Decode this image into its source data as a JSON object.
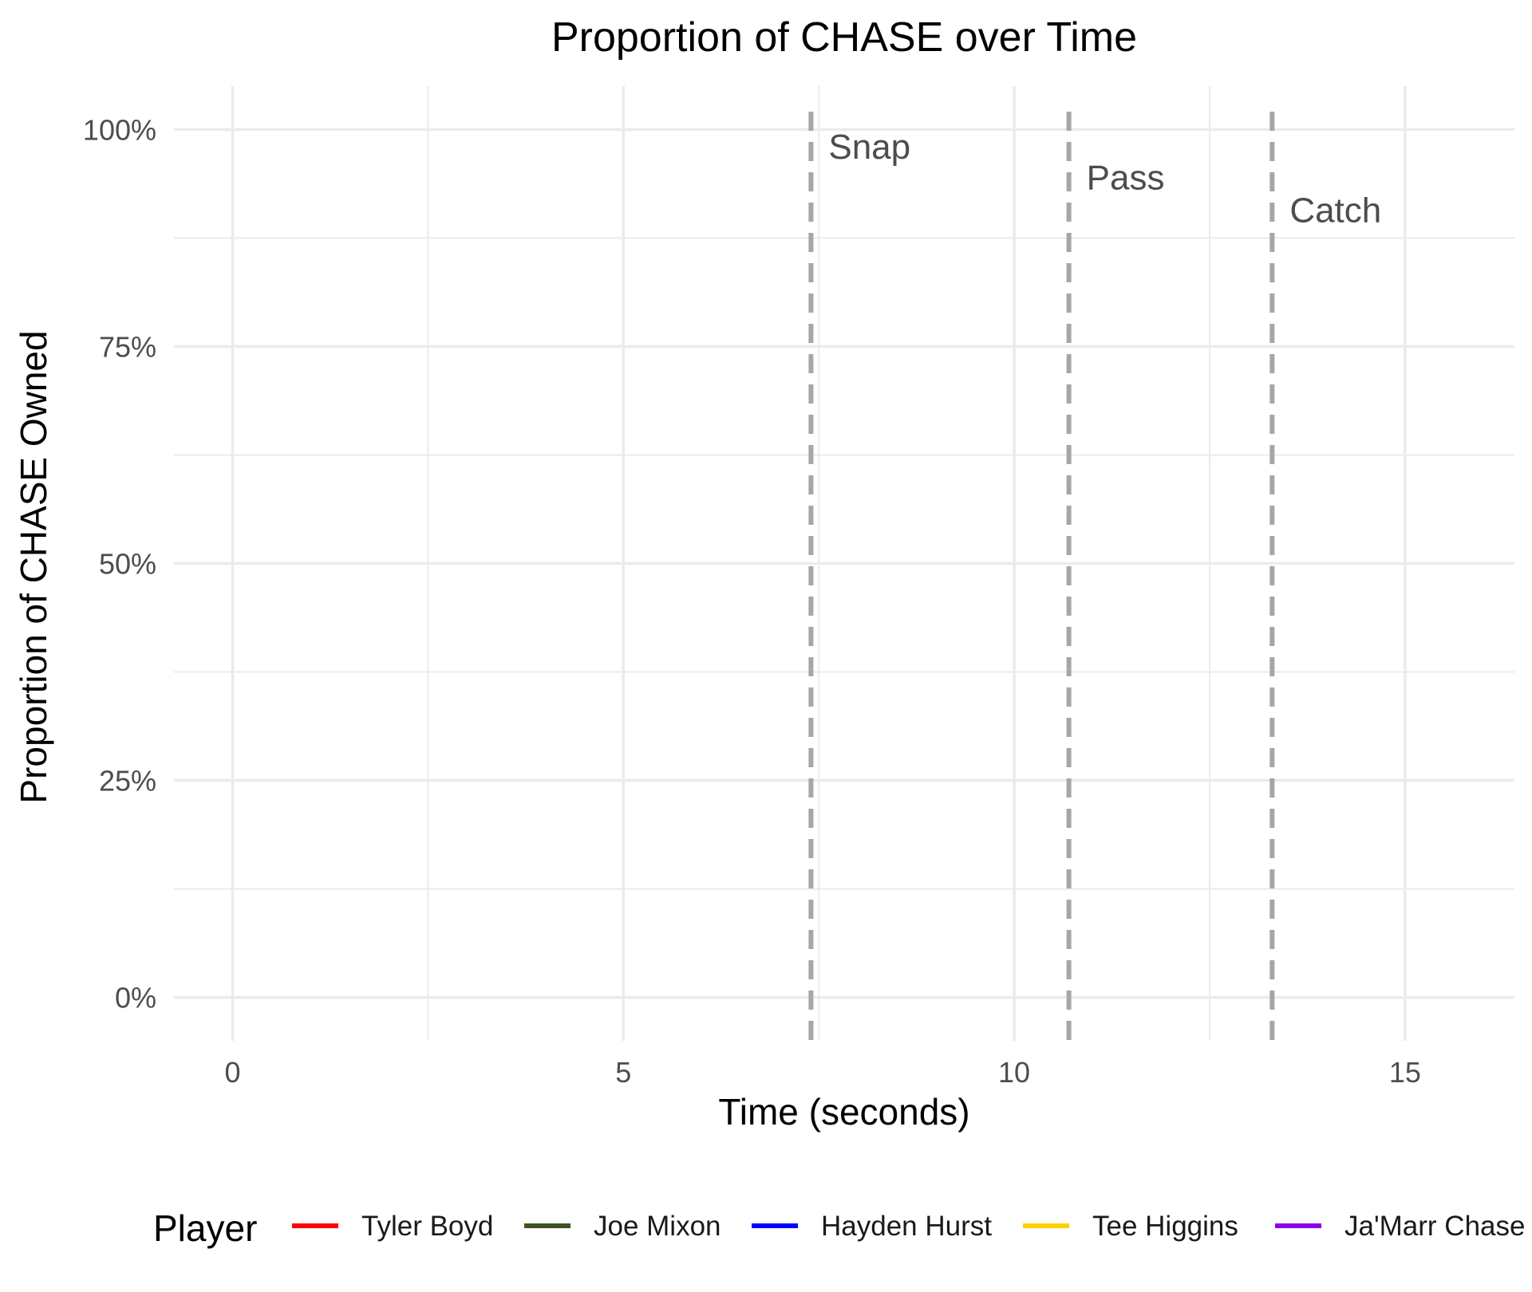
{
  "chart_data": {
    "type": "line",
    "title": "Proportion of CHASE over Time",
    "xlabel": "Time (seconds)",
    "ylabel": "Proportion of CHASE Owned",
    "xlim": [
      -0.75,
      16.4
    ],
    "ylim": [
      -0.05,
      1.05
    ],
    "x_ticks": [
      0,
      5,
      10,
      15
    ],
    "x_tick_labels": [
      "0",
      "5",
      "10",
      "15"
    ],
    "x_minor_ticks": [
      2.5,
      7.5,
      12.5
    ],
    "y_ticks": [
      0,
      0.25,
      0.5,
      0.75,
      1.0
    ],
    "y_tick_labels": [
      "0%",
      "25%",
      "50%",
      "75%",
      "100%"
    ],
    "y_minor_ticks": [
      0.125,
      0.375,
      0.625,
      0.875
    ],
    "grid": true,
    "legend_position": "bottom",
    "legend_title": "Player",
    "series": [
      {
        "name": "Tyler Boyd",
        "color": "#ff0000",
        "values": []
      },
      {
        "name": "Joe Mixon",
        "color": "#3f5320",
        "values": []
      },
      {
        "name": "Hayden Hurst",
        "color": "#0000ff",
        "values": []
      },
      {
        "name": "Tee Higgins",
        "color": "#ffd000",
        "values": []
      },
      {
        "name": "Ja'Marr Chase",
        "color": "#8b00ee",
        "values": []
      }
    ],
    "events": [
      {
        "label": "Snap",
        "x": 7.4,
        "label_y": 0.98
      },
      {
        "label": "Pass",
        "x": 10.7,
        "label_y": 0.945
      },
      {
        "label": "Catch",
        "x": 13.3,
        "label_y": 0.907
      }
    ]
  }
}
